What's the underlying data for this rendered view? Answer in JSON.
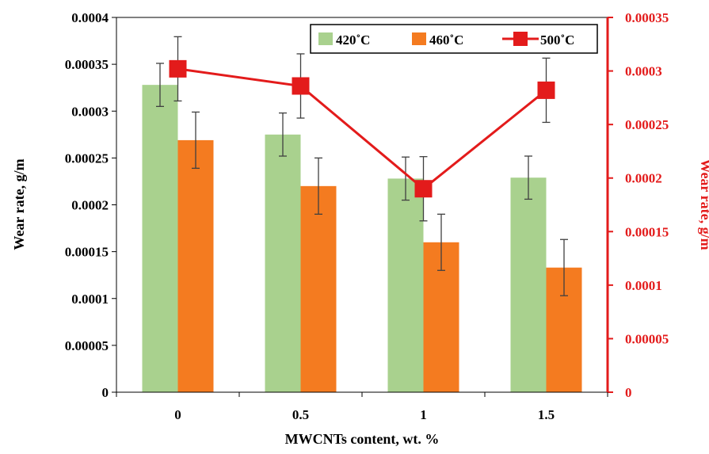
{
  "chart_data": {
    "type": "bar",
    "xlabel": "MWCNTs content, wt. %",
    "ylabel": "Wear rate, g/m",
    "y2label": "Wear rate, g/m",
    "categories": [
      "0",
      "0.5",
      "1",
      "1.5"
    ],
    "ylim": [
      0,
      0.0004
    ],
    "yticks": [
      "0",
      "0.00005",
      "0.0001",
      "0.00015",
      "0.0002",
      "0.00025",
      "0.0003",
      "0.00035",
      "0.0004"
    ],
    "y2lim": [
      0,
      0.00035
    ],
    "y2ticks": [
      "0",
      "0.00005",
      "0.0001",
      "0.00015",
      "0.0002",
      "0.00025",
      "0.0003",
      "0.00035"
    ],
    "grid": false,
    "legend_position": "top-right",
    "series": [
      {
        "name": "420˚C",
        "kind": "bar",
        "axis": "left",
        "color": "#a9d18e",
        "values": [
          0.000328,
          0.000275,
          0.000228,
          0.000229
        ],
        "errors": [
          2.3e-05,
          2.3e-05,
          2.3e-05,
          2.3e-05
        ]
      },
      {
        "name": "460˚C",
        "kind": "bar",
        "axis": "left",
        "color": "#f47b20",
        "values": [
          0.000269,
          0.00022,
          0.00016,
          0.000133
        ],
        "errors": [
          3e-05,
          3e-05,
          3e-05,
          3e-05
        ]
      },
      {
        "name": "500˚C",
        "kind": "line",
        "axis": "right",
        "color": "#e31b1b",
        "values": [
          0.000302,
          0.000286,
          0.00019,
          0.000282
        ],
        "errors": [
          3e-05,
          3e-05,
          3e-05,
          3e-05
        ]
      }
    ]
  }
}
